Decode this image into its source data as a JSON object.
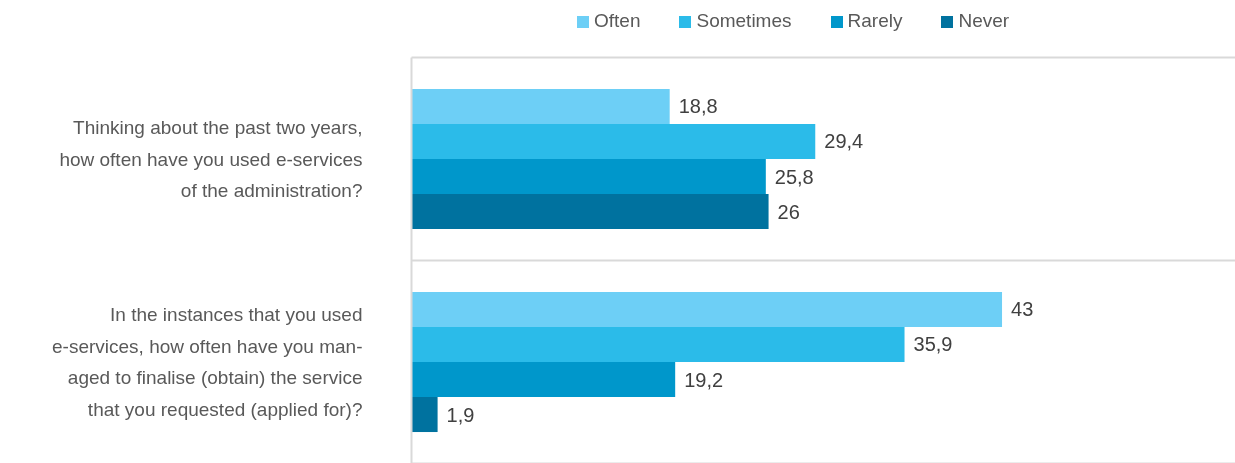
{
  "chart_data": {
    "type": "bar",
    "orientation": "horizontal",
    "categories": [
      "Thinking about the past two years,\nhow often have you used e-services\nof the administration?",
      "In the instances that you used\ne-services, how often have you man-\naged to finalise (obtain) the service\nthat you requested (applied for)?"
    ],
    "series": [
      {
        "name": "Often",
        "color": "#6dcff6",
        "values": [
          18.8,
          43
        ],
        "value_labels": [
          "18,8",
          "43"
        ]
      },
      {
        "name": "Sometimes",
        "color": "#2bbbe9",
        "values": [
          29.4,
          35.9
        ],
        "value_labels": [
          "29,4",
          "35,9"
        ]
      },
      {
        "name": "Rarely",
        "color": "#0097cb",
        "values": [
          25.8,
          19.2
        ],
        "value_labels": [
          "25,8",
          "19,2"
        ]
      },
      {
        "name": "Never",
        "color": "#00729f",
        "values": [
          26,
          1.9
        ],
        "value_labels": [
          "26",
          "1,9"
        ]
      }
    ],
    "xlim": [
      0,
      60
    ],
    "grid": "y",
    "legend": "top",
    "tick_labels": "y"
  }
}
